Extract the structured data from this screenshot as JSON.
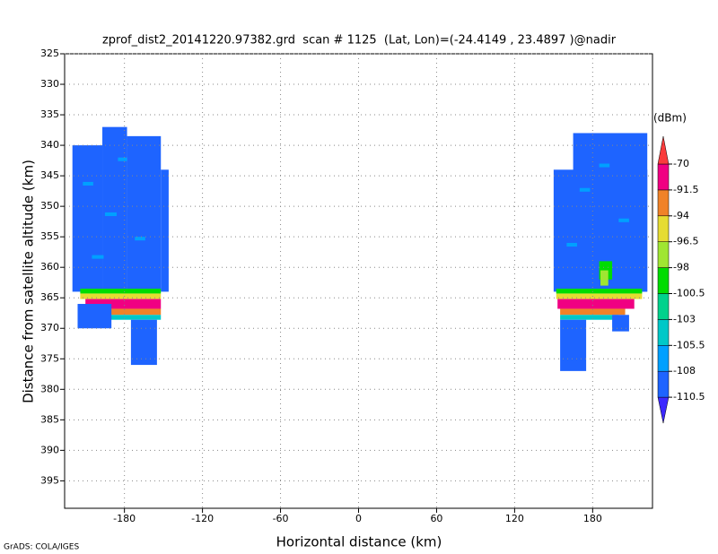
{
  "chart_data": {
    "type": "heatmap",
    "title": "zprof_dist2_20141220.97382.grd  scan # 1125  (Lat, Lon)=(-24.4149 , 23.4897 )@nadir",
    "x_label": "Horizontal distance (km)",
    "y_label": "Distance from satellite altitude (km)",
    "footer": "GrADS: COLA/IGES",
    "colorbar_title": "(dBm)",
    "xlim": [
      -226,
      226
    ],
    "ylim": [
      399.5,
      325
    ],
    "y_inverted": true,
    "xticks": [
      -180,
      -120,
      -60,
      0,
      60,
      120,
      180
    ],
    "yticks": [
      325,
      330,
      335,
      340,
      345,
      350,
      355,
      360,
      365,
      370,
      375,
      380,
      385,
      390,
      395
    ],
    "grid": true,
    "levels": [
      -110.5,
      -108,
      -105.5,
      -103,
      -100.5,
      -98,
      -96.5,
      -94,
      -91.5,
      -70
    ],
    "colors": [
      "#3c28ff",
      "#1e64ff",
      "#00a0ff",
      "#00c8c8",
      "#00d28c",
      "#00dc00",
      "#a0e632",
      "#e6dc32",
      "#f08228",
      "#f00082",
      "#fa3c3c"
    ],
    "cells": [
      [
        -220,
        -197,
        340,
        364,
        -109
      ],
      [
        -197,
        -178,
        337,
        364,
        -109
      ],
      [
        -178,
        -152,
        338.5,
        364,
        -109
      ],
      [
        -152,
        -146,
        344,
        364,
        -109
      ],
      [
        -212,
        -204,
        346,
        346.6,
        -106
      ],
      [
        -195,
        -186,
        351,
        351.6,
        -106
      ],
      [
        -172,
        -164,
        355,
        355.6,
        -106
      ],
      [
        -205,
        -196,
        358,
        358.6,
        -106
      ],
      [
        -185,
        -178,
        342,
        342.6,
        -106
      ],
      [
        -214,
        -152,
        363.5,
        364.3,
        -99
      ],
      [
        -214,
        -152,
        364.3,
        365.2,
        -95
      ],
      [
        -210,
        -152,
        365.2,
        366.8,
        -80
      ],
      [
        -205,
        -152,
        366.8,
        367.8,
        -93
      ],
      [
        -200,
        -152,
        367.8,
        368.6,
        -104
      ],
      [
        -216,
        -190,
        366,
        370,
        -109
      ],
      [
        -175,
        -155,
        368.6,
        376,
        -109
      ],
      [
        150,
        222,
        344,
        364,
        -109
      ],
      [
        165,
        222,
        338,
        364,
        -109
      ],
      [
        170,
        178,
        347,
        347.6,
        -106
      ],
      [
        200,
        208,
        352,
        352.6,
        -106
      ],
      [
        160,
        168,
        356,
        356.6,
        -106
      ],
      [
        185,
        193,
        343,
        343.6,
        -106
      ],
      [
        185,
        195,
        359,
        362,
        -100
      ],
      [
        186,
        192,
        360.5,
        363,
        -97
      ],
      [
        152,
        218,
        363.5,
        364.3,
        -99
      ],
      [
        152,
        218,
        364.3,
        365.2,
        -95
      ],
      [
        153,
        212,
        365.2,
        366.8,
        -80
      ],
      [
        155,
        205,
        366.8,
        367.8,
        -93
      ],
      [
        155,
        200,
        367.8,
        368.6,
        -104
      ],
      [
        155,
        175,
        368.6,
        377,
        -109
      ],
      [
        195,
        208,
        367.8,
        370.5,
        -109
      ]
    ]
  }
}
